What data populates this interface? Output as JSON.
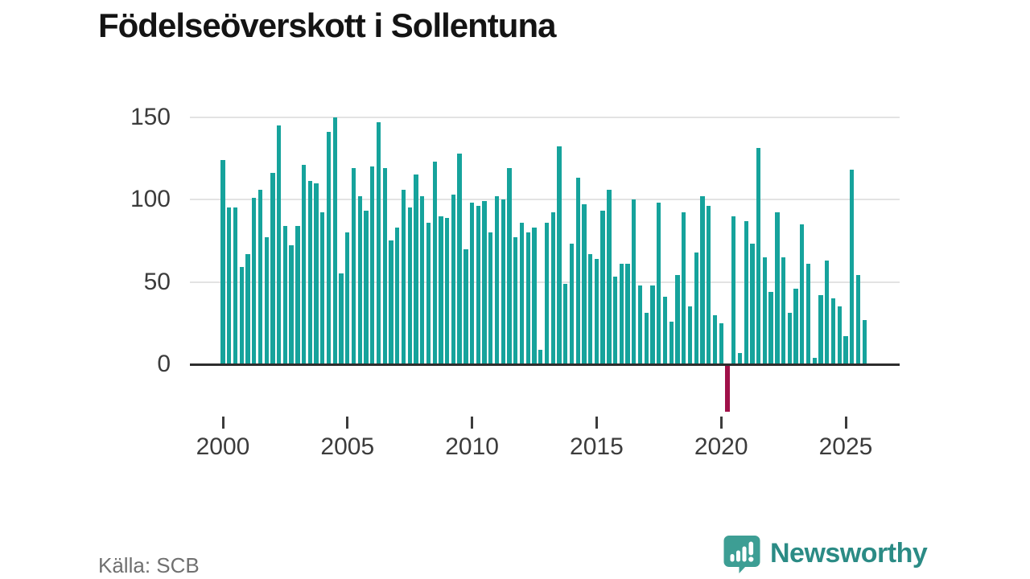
{
  "header": {
    "title": "Födelseöverskott i Sollentuna"
  },
  "chart_data": {
    "type": "bar",
    "title": "Födelseöverskott i Sollentuna",
    "frequency": "quarterly",
    "start": "2000-Q1",
    "end": "2025-Q4",
    "values": [
      124,
      95,
      95,
      59,
      67,
      101,
      106,
      77,
      116,
      145,
      84,
      72,
      84,
      121,
      111,
      110,
      92,
      141,
      150,
      55,
      80,
      119,
      102,
      93,
      120,
      147,
      119,
      75,
      83,
      106,
      95,
      115,
      102,
      86,
      123,
      90,
      89,
      103,
      128,
      70,
      98,
      96,
      99,
      80,
      102,
      100,
      119,
      77,
      86,
      80,
      83,
      9,
      86,
      92,
      132,
      49,
      73,
      113,
      97,
      67,
      64,
      93,
      106,
      53,
      61,
      61,
      100,
      48,
      31,
      48,
      98,
      41,
      26,
      54,
      92,
      35,
      68,
      102,
      96,
      30,
      25,
      -29,
      90,
      7,
      87,
      73,
      131,
      65,
      44,
      92,
      65,
      31,
      46,
      85,
      61,
      4,
      42,
      63,
      40,
      35,
      17,
      118,
      54,
      27
    ],
    "yticks": [
      0,
      50,
      100,
      150
    ],
    "ylim": [
      -35,
      160
    ],
    "xticks": [
      2000,
      2005,
      2010,
      2015,
      2020,
      2025
    ],
    "grid": true,
    "legend": "none",
    "bar_color": "#16a39c",
    "negative_bar_color": "#a01149",
    "axis_color": "#2d2d2d",
    "gridline_color": "#e3e3e3",
    "tick_label_color": "#3c3c3c"
  },
  "footer": {
    "source": "Källa: SCB",
    "brand_name": "Newsworthy",
    "brand_text_color": "#2b8b85",
    "brand_icon": "bar-chart-speech-bubble",
    "brand_icon_color": "#3d9e94"
  }
}
